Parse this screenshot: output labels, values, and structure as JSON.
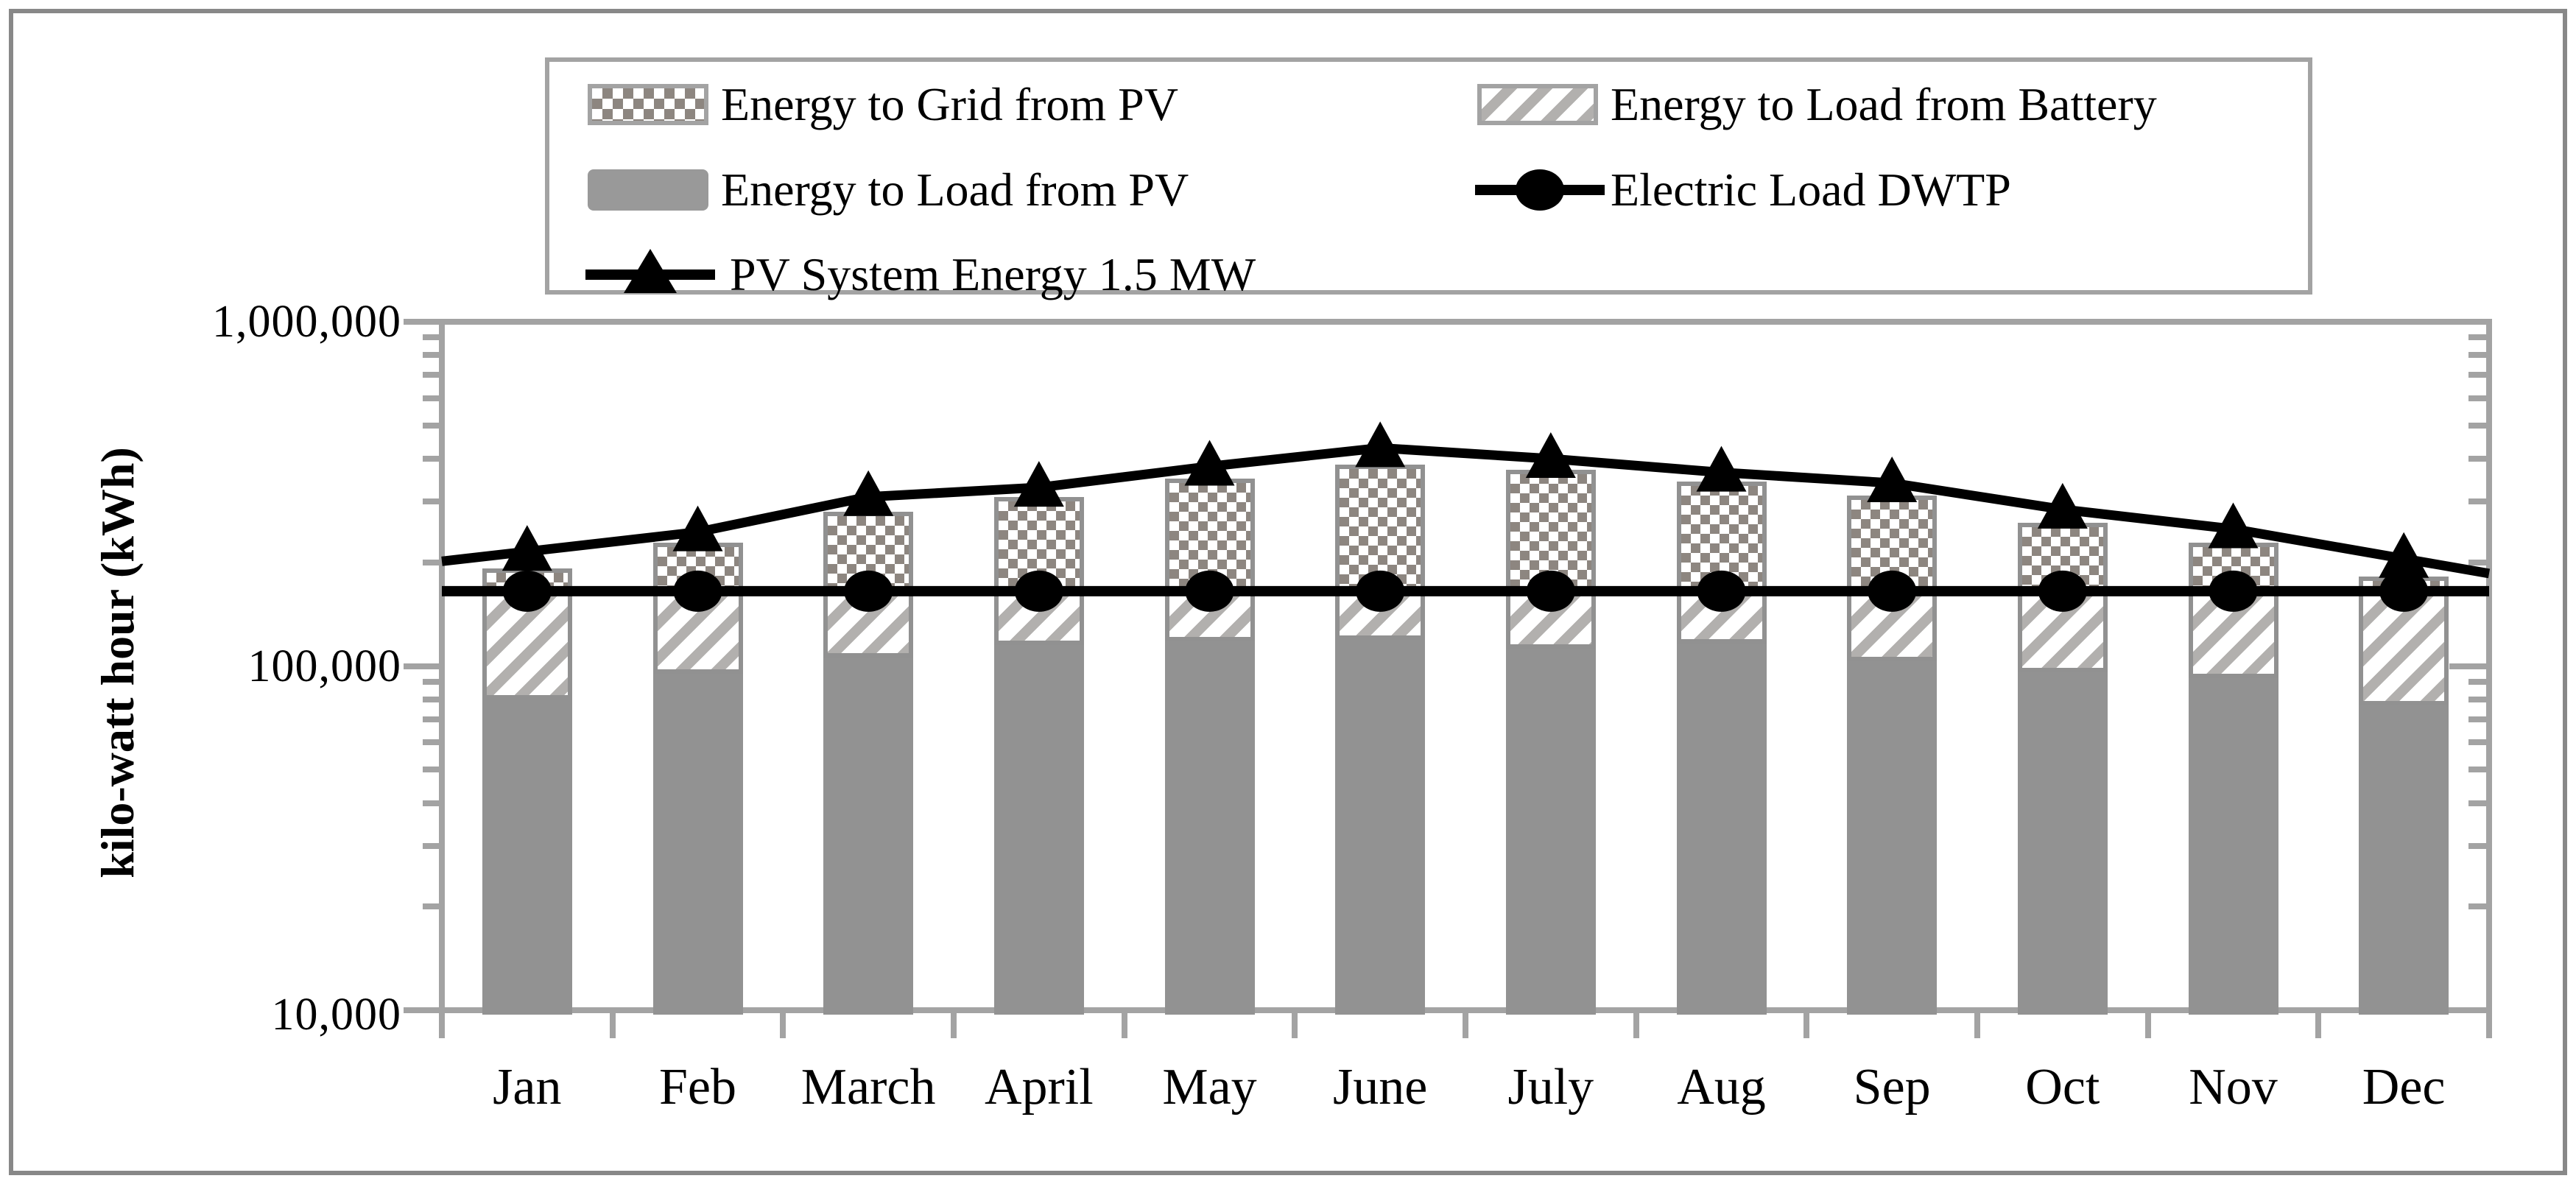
{
  "figure": {
    "y_axis_title": "kilo-watt hour (kWh)"
  },
  "y_tick_labels": [
    "1,000,000",
    "100,000",
    "10,000"
  ],
  "legend": {
    "items": [
      {
        "label": "Energy to Grid from PV",
        "swatch": "checkerboard-pattern"
      },
      {
        "label": "Energy to Load from Battery",
        "swatch": "diagonal-stripe-pattern"
      },
      {
        "label": "Energy to Load from PV",
        "swatch": "solid-gray"
      },
      {
        "label": "Electric Load DWTP",
        "swatch": "black-line-circle-marker"
      },
      {
        "label": "PV System Energy 1.5 MW",
        "swatch": "black-line-triangle-marker"
      }
    ]
  },
  "colors": {
    "bar_gray": "#929292",
    "checker_gray": "#8d8680",
    "stripe_gray": "#b2b0ae",
    "axis_gray": "#a3a3a3",
    "frame_gray": "#888888",
    "line_black": "#000000"
  },
  "chart_data": {
    "type": "bar",
    "subtype": "stacked-bar-with-line-overlay",
    "yscale": "log",
    "ylim": [
      10000,
      1000000
    ],
    "ylabel": "kilo-watt hour (kWh)",
    "xlabel": "",
    "grid": false,
    "legend_position": "top-inside",
    "y_ticks": [
      10000,
      100000,
      1000000
    ],
    "categories": [
      "Jan",
      "Feb",
      "March",
      "April",
      "May",
      "June",
      "July",
      "Aug",
      "Sep",
      "Oct",
      "Nov",
      "Dec"
    ],
    "bar_series": [
      {
        "name": "Energy to Load from PV",
        "pattern": "solid",
        "values": [
          80000,
          95000,
          106000,
          115000,
          118000,
          119000,
          112000,
          116000,
          103000,
          96000,
          92000,
          77000
        ]
      },
      {
        "name": "Energy to Load from Battery",
        "pattern": "diagonal-stripes",
        "values": [
          85000,
          70000,
          59000,
          50000,
          47000,
          46000,
          53000,
          49000,
          62000,
          69000,
          73000,
          88000
        ]
      },
      {
        "name": "Energy to Grid from PV",
        "pattern": "checkerboard",
        "values": [
          27000,
          63000,
          115000,
          145000,
          185000,
          220000,
          207000,
          179000,
          147000,
          95000,
          63000,
          17000
        ]
      }
    ],
    "line_series": [
      {
        "name": "Electric Load DWTP",
        "marker": "circle",
        "values": [
          165000,
          165000,
          165000,
          165000,
          165000,
          165000,
          165000,
          165000,
          165000,
          165000,
          165000,
          165000
        ]
      },
      {
        "name": "PV System Energy 1.5 MW",
        "marker": "triangle",
        "values": [
          215000,
          245000,
          310000,
          330000,
          380000,
          430000,
          400000,
          365000,
          340000,
          285000,
          250000,
          205000
        ]
      }
    ]
  }
}
